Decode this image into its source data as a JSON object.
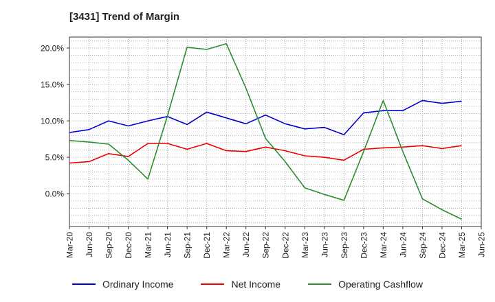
{
  "title": "[3431]  Trend of Margin",
  "chart_data": {
    "type": "line",
    "x": [
      "Mar-20",
      "Jun-20",
      "Sep-20",
      "Dec-20",
      "Mar-21",
      "Jun-21",
      "Sep-21",
      "Dec-21",
      "Mar-22",
      "Jun-22",
      "Sep-22",
      "Dec-22",
      "Mar-23",
      "Jun-23",
      "Sep-23",
      "Dec-23",
      "Mar-24",
      "Jun-24",
      "Sep-24",
      "Dec-24",
      "Mar-25",
      "Jun-25"
    ],
    "ylim": [
      -4.5,
      21.5
    ],
    "yticks": [
      0,
      5,
      10,
      15,
      20
    ],
    "ytick_labels": [
      "0.0%",
      "5.0%",
      "10.0%",
      "15.0%",
      "20.0%"
    ],
    "grid": true,
    "legend_position": "bottom",
    "series": [
      {
        "name": "Ordinary Income",
        "color": "#0000cc",
        "values": [
          8.4,
          8.8,
          10.0,
          9.3,
          10.0,
          10.6,
          9.5,
          11.2,
          10.4,
          9.6,
          10.8,
          9.6,
          8.9,
          9.1,
          8.1,
          11.1,
          11.4,
          11.4,
          12.8,
          12.4,
          12.7,
          null
        ]
      },
      {
        "name": "Net Income",
        "color": "#ee0000",
        "values": [
          4.2,
          4.4,
          5.5,
          5.1,
          6.9,
          6.9,
          6.1,
          6.9,
          5.9,
          5.8,
          6.4,
          5.9,
          5.2,
          5.0,
          4.6,
          6.1,
          6.3,
          6.4,
          6.6,
          6.2,
          6.6,
          null
        ]
      },
      {
        "name": "Operating Cashflow",
        "color": "#2e8b2e",
        "values": [
          7.3,
          7.1,
          6.8,
          4.6,
          2.0,
          10.7,
          20.1,
          19.8,
          20.6,
          14.5,
          7.6,
          4.4,
          0.8,
          -0.1,
          -0.9,
          5.8,
          12.8,
          5.8,
          -0.7,
          -2.2,
          -3.5,
          null
        ]
      }
    ]
  }
}
